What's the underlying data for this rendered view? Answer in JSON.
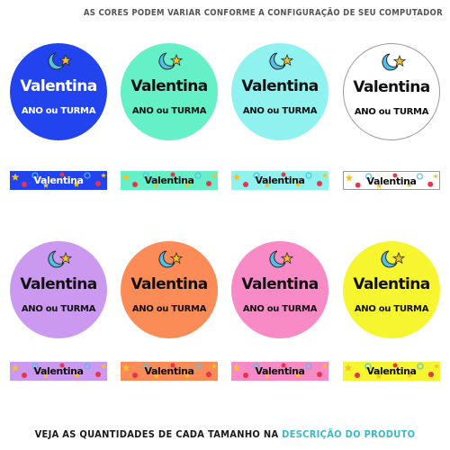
{
  "header": {
    "note": "AS CORES PODEM VARIAR CONFORME A CONFIGURAÇÃO DE SEU COMPUTADOR"
  },
  "footer": {
    "text": "VEJA AS QUANTIDADES DE CADA TAMANHO NA ",
    "link": "DESCRIÇÃO DO PRODUTO"
  },
  "labels": [
    {
      "name": "Valentina",
      "subtitle": "ANO ou TURMA",
      "color": "#2244ee",
      "text_color": "#ffffff",
      "icon": "moon-star-icon"
    },
    {
      "name": "Valentina",
      "subtitle": "ANO ou TURMA",
      "color": "#66f0c8",
      "text_color": "#111111",
      "icon": "moon-star-icon"
    },
    {
      "name": "Valentina",
      "subtitle": "ANO ou TURMA",
      "color": "#8ff2ef",
      "text_color": "#111111",
      "icon": "moon-star-icon"
    },
    {
      "name": "Valentina",
      "subtitle": "ANO ou TURMA",
      "color": "#ffffff",
      "text_color": "#111111",
      "icon": "moon-star-icon"
    },
    {
      "name": "Valentina",
      "subtitle": "ANO ou TURMA",
      "color": "#cc99f0",
      "text_color": "#111111",
      "icon": "moon-star-icon"
    },
    {
      "name": "Valentina",
      "subtitle": "ANO ou TURMA",
      "color": "#fb8c57",
      "text_color": "#111111",
      "icon": "moon-star-icon"
    },
    {
      "name": "Valentina",
      "subtitle": "ANO ou TURMA",
      "color": "#f88ac6",
      "text_color": "#111111",
      "icon": "moon-star-icon"
    },
    {
      "name": "Valentina",
      "subtitle": "ANO ou TURMA",
      "color": "#f7f530",
      "text_color": "#111111",
      "icon": "moon-star-icon"
    }
  ],
  "strips": [
    {
      "name": "Valentina",
      "color": "#2244ee"
    },
    {
      "name": "Valentina",
      "color": "#66f0c8"
    },
    {
      "name": "Valentina",
      "color": "#8ff2ef"
    },
    {
      "name": "Valentina",
      "color": "#ffffff"
    },
    {
      "name": "Valentina",
      "color": "#cc99f0"
    },
    {
      "name": "Valentina",
      "color": "#fb8c57"
    },
    {
      "name": "Valentina",
      "color": "#f88ac6"
    },
    {
      "name": "Valentina",
      "color": "#f7f530"
    }
  ]
}
